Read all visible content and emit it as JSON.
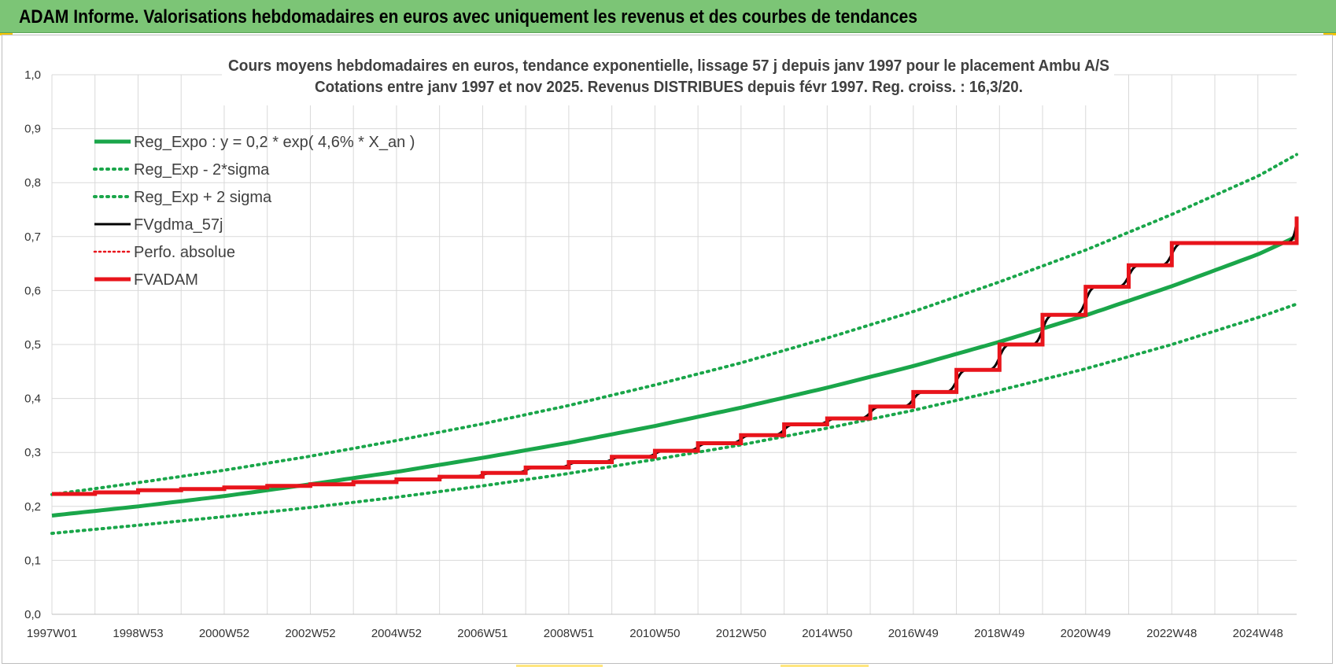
{
  "banner": {
    "title": "ADAM Informe. Valorisations hebdomadaires en euros avec uniquement les revenus et des courbes de tendances"
  },
  "colors": {
    "banner": "#7cc576",
    "trend": "#1aa64a",
    "trend_band": "#1aa64a",
    "smoothed": "#000000",
    "perf": "#e8141b",
    "fvadam": "#e8141b",
    "grid": "#d9d9d9",
    "accent": "#f5c400"
  },
  "chart_data": {
    "type": "line",
    "title": [
      "Cours moyens hebdomadaires en euros, tendance exponentielle, lissage 57 j depuis janv 1997 pour le placement Ambu A/S",
      "Cotations entre janv 1997 et nov 2025. Revenus DISTRIBUES depuis févr 1997. Reg. croiss. : 16,3/20."
    ],
    "xlabel": "",
    "ylabel": "",
    "ylim": [
      0,
      1.0
    ],
    "yticks": [
      "0,0",
      "0,1",
      "0,2",
      "0,3",
      "0,4",
      "0,5",
      "0,6",
      "0,7",
      "0,8",
      "0,9",
      "1,0"
    ],
    "xrange_years": [
      1997.0,
      2025.9
    ],
    "xticks": [
      {
        "label": "1997W01",
        "year": 1997.0
      },
      {
        "label": "1998W53",
        "year": 1999.0
      },
      {
        "label": "2000W52",
        "year": 2001.0
      },
      {
        "label": "2002W52",
        "year": 2003.0
      },
      {
        "label": "2004W52",
        "year": 2005.0
      },
      {
        "label": "2006W51",
        "year": 2007.0
      },
      {
        "label": "2008W51",
        "year": 2009.0
      },
      {
        "label": "2010W50",
        "year": 2011.0
      },
      {
        "label": "2012W50",
        "year": 2013.0
      },
      {
        "label": "2014W50",
        "year": 2015.0
      },
      {
        "label": "2016W49",
        "year": 2017.0
      },
      {
        "label": "2018W49",
        "year": 2019.0
      },
      {
        "label": "2020W49",
        "year": 2021.0
      },
      {
        "label": "2022W48",
        "year": 2023.0
      },
      {
        "label": "2024W48",
        "year": 2025.0
      }
    ],
    "grid": true,
    "legend_position": "top-left",
    "series": [
      {
        "name": "Reg_Expo : y = 0,2 * exp( 4,6% *  X_an )",
        "style": "solid-thick",
        "color": "#1aa64a",
        "x": [
          1997,
          1999,
          2001,
          2003,
          2005,
          2007,
          2009,
          2011,
          2013,
          2015,
          2017,
          2019,
          2021,
          2023,
          2025,
          2025.9
        ],
        "values": [
          0.183,
          0.2,
          0.219,
          0.241,
          0.264,
          0.29,
          0.318,
          0.349,
          0.383,
          0.42,
          0.46,
          0.505,
          0.554,
          0.608,
          0.667,
          0.7
        ]
      },
      {
        "name": "Reg_Exp - 2*sigma",
        "style": "dotted",
        "color": "#1aa64a",
        "x": [
          1997,
          1999,
          2001,
          2003,
          2005,
          2007,
          2009,
          2011,
          2013,
          2015,
          2017,
          2019,
          2021,
          2023,
          2025,
          2025.9
        ],
        "values": [
          0.15,
          0.165,
          0.181,
          0.198,
          0.217,
          0.238,
          0.261,
          0.287,
          0.314,
          0.345,
          0.378,
          0.415,
          0.455,
          0.5,
          0.55,
          0.575
        ]
      },
      {
        "name": "Reg_Exp + 2 sigma",
        "style": "dotted",
        "color": "#1aa64a",
        "x": [
          1997,
          1999,
          2001,
          2003,
          2005,
          2007,
          2009,
          2011,
          2013,
          2015,
          2017,
          2019,
          2021,
          2023,
          2025,
          2025.9
        ],
        "values": [
          0.222,
          0.244,
          0.267,
          0.293,
          0.322,
          0.353,
          0.387,
          0.425,
          0.466,
          0.512,
          0.561,
          0.616,
          0.675,
          0.741,
          0.812,
          0.852
        ]
      },
      {
        "name": "FVgdma_57j",
        "style": "solid",
        "color": "#000000",
        "x": [
          1997.0,
          1998.0,
          1999.0,
          2000.0,
          2001.0,
          2002.0,
          2003.0,
          2004.0,
          2005.0,
          2006.0,
          2007.0,
          2008.0,
          2009.0,
          2010.0,
          2011.0,
          2012.0,
          2013.0,
          2014.0,
          2015.0,
          2016.0,
          2017.0,
          2018.0,
          2019.0,
          2020.0,
          2021.0,
          2022.0,
          2023.0,
          2024.0,
          2025.0,
          2025.9
        ],
        "values": [
          0.223,
          0.226,
          0.23,
          0.232,
          0.235,
          0.238,
          0.241,
          0.245,
          0.25,
          0.255,
          0.262,
          0.272,
          0.282,
          0.292,
          0.303,
          0.317,
          0.332,
          0.352,
          0.363,
          0.385,
          0.412,
          0.453,
          0.5,
          0.555,
          0.607,
          0.647,
          0.688,
          0.688,
          0.688,
          0.737
        ]
      },
      {
        "name": "Perfo. absolue",
        "style": "dotted",
        "color": "#e8141b",
        "x": [
          1997.0,
          2025.9
        ],
        "values": [
          0.223,
          0.737
        ]
      },
      {
        "name": "FVADAM",
        "style": "step-thick",
        "color": "#e8141b",
        "x": [
          1997.0,
          1998.0,
          1999.0,
          2000.0,
          2001.0,
          2002.0,
          2003.0,
          2004.0,
          2005.0,
          2006.0,
          2007.0,
          2008.0,
          2009.0,
          2010.0,
          2011.0,
          2012.0,
          2013.0,
          2014.0,
          2015.0,
          2016.0,
          2017.0,
          2018.0,
          2019.0,
          2020.0,
          2021.0,
          2022.0,
          2023.0,
          2024.0,
          2025.0,
          2025.9
        ],
        "values": [
          0.223,
          0.226,
          0.23,
          0.232,
          0.235,
          0.238,
          0.241,
          0.245,
          0.25,
          0.255,
          0.262,
          0.272,
          0.282,
          0.292,
          0.303,
          0.317,
          0.332,
          0.352,
          0.363,
          0.385,
          0.412,
          0.453,
          0.5,
          0.555,
          0.607,
          0.647,
          0.688,
          0.688,
          0.688,
          0.737
        ]
      }
    ]
  }
}
